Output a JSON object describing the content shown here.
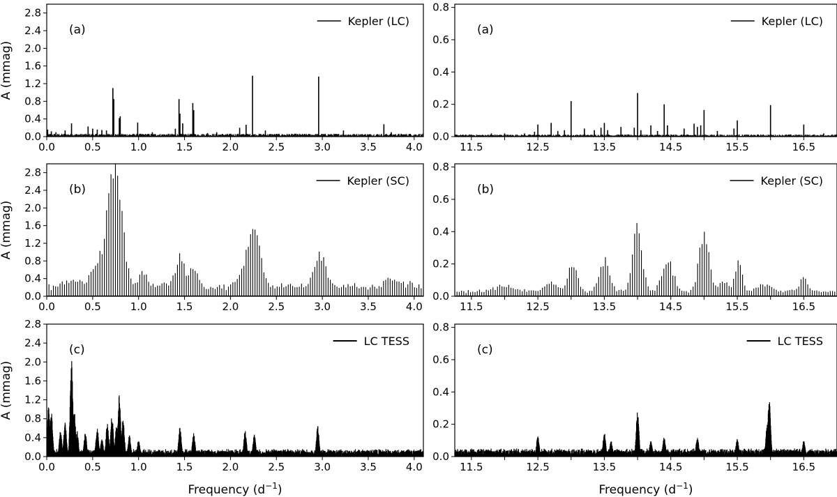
{
  "figure": {
    "ylabel": "A (mmag)",
    "xlabel_main": "Frequency (d",
    "xlabel_sup": "−1",
    "xlabel_close": ")"
  },
  "chart_data": [
    {
      "type": "bar",
      "panel": "(a)",
      "legend": "Kepler (LC)",
      "style": "spikes",
      "xlim": [
        0.0,
        4.1
      ],
      "ylim": [
        0.0,
        3.0
      ],
      "xticks": [
        "0.0",
        "0.5",
        "1.0",
        "1.5",
        "2.0",
        "2.5",
        "3.0",
        "3.5",
        "4.0"
      ],
      "yticks": [
        "0.0",
        "0.4",
        "0.8",
        "1.2",
        "1.6",
        "2.0",
        "2.4",
        "2.8"
      ],
      "show_ylabel": true,
      "show_xlabel": false,
      "baseline": 0.04,
      "peaks": [
        [
          0.01,
          0.16
        ],
        [
          0.05,
          0.12
        ],
        [
          0.1,
          0.1
        ],
        [
          0.2,
          0.14
        ],
        [
          0.27,
          0.3
        ],
        [
          0.45,
          0.23
        ],
        [
          0.5,
          0.18
        ],
        [
          0.55,
          0.16
        ],
        [
          0.6,
          0.15
        ],
        [
          0.65,
          0.14
        ],
        [
          0.72,
          1.1
        ],
        [
          0.73,
          0.85
        ],
        [
          0.79,
          0.42
        ],
        [
          0.8,
          0.46
        ],
        [
          0.99,
          0.32
        ],
        [
          1.15,
          0.1
        ],
        [
          1.4,
          0.18
        ],
        [
          1.44,
          0.85
        ],
        [
          1.45,
          0.52
        ],
        [
          1.48,
          0.3
        ],
        [
          1.59,
          0.76
        ],
        [
          1.6,
          0.6
        ],
        [
          1.75,
          0.08
        ],
        [
          1.85,
          0.1
        ],
        [
          2.1,
          0.2
        ],
        [
          2.17,
          0.27
        ],
        [
          2.24,
          1.38
        ],
        [
          2.38,
          0.14
        ],
        [
          2.96,
          1.36
        ],
        [
          3.23,
          0.14
        ],
        [
          3.67,
          0.28
        ],
        [
          3.75,
          0.1
        ],
        [
          3.95,
          0.06
        ]
      ]
    },
    {
      "type": "bar",
      "panel": "(a)",
      "legend": "Kepler (LC)",
      "style": "spikes",
      "xlim": [
        11.25,
        17.0
      ],
      "ylim": [
        0.0,
        0.82
      ],
      "xticks": [
        "11.5",
        "12.5",
        "13.5",
        "14.5",
        "15.5",
        "16.5"
      ],
      "minor_xticks": [
        12.0,
        13.0,
        14.0,
        15.0,
        16.0
      ],
      "yticks": [
        "0.0",
        "0.2",
        "0.4",
        "0.6",
        "0.8"
      ],
      "show_ylabel": false,
      "show_xlabel": false,
      "baseline": 0.008,
      "peaks": [
        [
          11.8,
          0.02
        ],
        [
          12.0,
          0.02
        ],
        [
          12.3,
          0.02
        ],
        [
          12.45,
          0.03
        ],
        [
          12.5,
          0.075
        ],
        [
          12.7,
          0.085
        ],
        [
          12.8,
          0.035
        ],
        [
          12.9,
          0.04
        ],
        [
          13.0,
          0.22
        ],
        [
          13.2,
          0.05
        ],
        [
          13.35,
          0.04
        ],
        [
          13.45,
          0.055
        ],
        [
          13.5,
          0.085
        ],
        [
          13.55,
          0.04
        ],
        [
          13.75,
          0.06
        ],
        [
          13.95,
          0.055
        ],
        [
          14.0,
          0.27
        ],
        [
          14.05,
          0.04
        ],
        [
          14.2,
          0.07
        ],
        [
          14.3,
          0.035
        ],
        [
          14.4,
          0.2
        ],
        [
          14.45,
          0.07
        ],
        [
          14.7,
          0.05
        ],
        [
          14.85,
          0.08
        ],
        [
          14.9,
          0.06
        ],
        [
          14.95,
          0.07
        ],
        [
          15.0,
          0.165
        ],
        [
          15.2,
          0.035
        ],
        [
          15.45,
          0.05
        ],
        [
          15.5,
          0.1
        ],
        [
          16.0,
          0.195
        ],
        [
          16.5,
          0.075
        ],
        [
          16.8,
          0.02
        ]
      ]
    },
    {
      "type": "bar",
      "panel": "(b)",
      "legend": "Kepler (SC)",
      "style": "comb",
      "xlim": [
        0.0,
        4.1
      ],
      "ylim": [
        0.0,
        3.0
      ],
      "xticks": [
        "0.0",
        "0.5",
        "1.0",
        "1.5",
        "2.0",
        "2.5",
        "3.0",
        "3.5",
        "4.0"
      ],
      "yticks": [
        "0.0",
        "0.4",
        "0.8",
        "1.2",
        "1.6",
        "2.0",
        "2.4",
        "2.8"
      ],
      "show_ylabel": true,
      "show_xlabel": false,
      "base_level": 0.2,
      "bumps": [
        [
          0.74,
          2.55,
          0.08
        ],
        [
          0.55,
          0.4,
          0.07
        ],
        [
          1.05,
          0.4,
          0.04
        ],
        [
          1.45,
          0.65,
          0.05
        ],
        [
          1.6,
          0.4,
          0.05
        ],
        [
          2.26,
          1.3,
          0.07
        ],
        [
          2.12,
          0.2,
          0.06
        ],
        [
          2.97,
          0.75,
          0.06
        ],
        [
          0.3,
          0.15,
          0.1
        ],
        [
          3.75,
          0.2,
          0.06
        ],
        [
          3.95,
          0.1,
          0.05
        ],
        [
          1.25,
          0.1,
          0.05
        ],
        [
          2.6,
          0.07,
          0.08
        ],
        [
          3.3,
          0.07,
          0.08
        ]
      ]
    },
    {
      "type": "bar",
      "panel": "(b)",
      "legend": "Kepler (SC)",
      "style": "comb",
      "xlim": [
        11.25,
        17.0
      ],
      "ylim": [
        0.0,
        0.82
      ],
      "xticks": [
        "11.5",
        "12.5",
        "13.5",
        "14.5",
        "15.5",
        "16.5"
      ],
      "minor_xticks": [
        12.0,
        13.0,
        14.0,
        15.0,
        16.0
      ],
      "yticks": [
        "0.0",
        "0.2",
        "0.4",
        "0.6",
        "0.8"
      ],
      "show_ylabel": false,
      "show_xlabel": false,
      "base_level": 0.03,
      "bumps": [
        [
          14.0,
          0.38,
          0.07
        ],
        [
          15.0,
          0.37,
          0.07
        ],
        [
          14.45,
          0.2,
          0.08
        ],
        [
          13.5,
          0.18,
          0.08
        ],
        [
          13.02,
          0.16,
          0.07
        ],
        [
          15.52,
          0.18,
          0.05
        ],
        [
          15.3,
          0.06,
          0.07
        ],
        [
          16.5,
          0.09,
          0.05
        ],
        [
          12.7,
          0.05,
          0.1
        ],
        [
          12.0,
          0.03,
          0.15
        ],
        [
          15.9,
          0.04,
          0.1
        ]
      ]
    },
    {
      "type": "area",
      "panel": "(c)",
      "legend": "LC TESS",
      "style": "dense",
      "xlim": [
        0.0,
        4.1
      ],
      "ylim": [
        0.0,
        2.8
      ],
      "xticks": [
        "0.0",
        "0.5",
        "1.0",
        "1.5",
        "2.0",
        "2.5",
        "3.0",
        "3.5",
        "4.0"
      ],
      "yticks": [
        "0.0",
        "0.4",
        "0.8",
        "1.2",
        "1.6",
        "2.0",
        "2.4",
        "2.8"
      ],
      "show_ylabel": true,
      "show_xlabel": true,
      "noise": 0.16,
      "peaks": [
        [
          0.02,
          1.05
        ],
        [
          0.05,
          0.95
        ],
        [
          0.15,
          0.55
        ],
        [
          0.2,
          0.75
        ],
        [
          0.27,
          2.07
        ],
        [
          0.3,
          0.95
        ],
        [
          0.33,
          0.55
        ],
        [
          0.42,
          0.5
        ],
        [
          0.55,
          0.6
        ],
        [
          0.6,
          0.4
        ],
        [
          0.66,
          0.72
        ],
        [
          0.71,
          0.9
        ],
        [
          0.76,
          0.65
        ],
        [
          0.79,
          1.3
        ],
        [
          0.83,
          0.85
        ],
        [
          0.9,
          0.45
        ],
        [
          1.0,
          0.35
        ],
        [
          1.45,
          0.65
        ],
        [
          1.6,
          0.5
        ],
        [
          2.16,
          0.55
        ],
        [
          2.26,
          0.48
        ],
        [
          2.95,
          0.65
        ]
      ]
    },
    {
      "type": "area",
      "panel": "(c)",
      "legend": "LC TESS",
      "style": "dense",
      "xlim": [
        11.25,
        17.0
      ],
      "ylim": [
        0.0,
        0.82
      ],
      "xticks": [
        "11.5",
        "12.5",
        "13.5",
        "14.5",
        "15.5",
        "16.5"
      ],
      "minor_xticks": [
        12.0,
        13.0,
        14.0,
        15.0,
        16.0
      ],
      "yticks": [
        "0.0",
        "0.2",
        "0.4",
        "0.6",
        "0.8"
      ],
      "show_ylabel": false,
      "show_xlabel": true,
      "noise": 0.05,
      "peaks": [
        [
          12.5,
          0.13
        ],
        [
          13.5,
          0.15
        ],
        [
          14.0,
          0.28
        ],
        [
          14.4,
          0.12
        ],
        [
          14.9,
          0.12
        ],
        [
          15.5,
          0.11
        ],
        [
          15.95,
          0.2
        ],
        [
          15.98,
          0.37
        ],
        [
          16.5,
          0.1
        ],
        [
          13.6,
          0.1
        ],
        [
          14.2,
          0.1
        ]
      ]
    }
  ]
}
